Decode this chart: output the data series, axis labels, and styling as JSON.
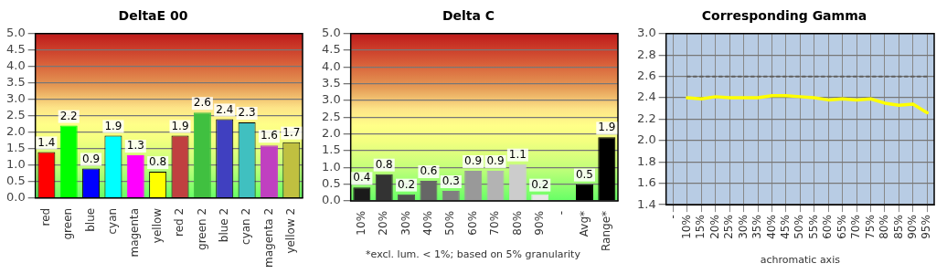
{
  "chart_data": [
    {
      "type": "bar",
      "title": "DeltaE 00",
      "categories": [
        "red",
        "green",
        "blue",
        "cyan",
        "magenta",
        "yellow",
        "red 2",
        "green 2",
        "blue 2",
        "cyan 2",
        "magenta 2",
        "yellow 2"
      ],
      "values": [
        1.4,
        2.2,
        0.9,
        1.9,
        1.3,
        0.8,
        1.9,
        2.6,
        2.4,
        2.3,
        1.6,
        1.7
      ],
      "colors": [
        "#ff0000",
        "#00ff00",
        "#0000ff",
        "#00ffff",
        "#ff00ff",
        "#ffff00",
        "#c04040",
        "#40c040",
        "#4040c0",
        "#40c0c0",
        "#c040c0",
        "#c0c040"
      ],
      "ylim": [
        0,
        5
      ],
      "yticks": [
        {
          "value": 0,
          "label": "0.0"
        },
        0.5,
        {
          "value": 1,
          "label": "1.0"
        },
        1.5,
        {
          "value": 2,
          "label": "2.0"
        },
        2.5,
        {
          "value": 3,
          "label": "3.0"
        },
        3.5,
        {
          "value": 4,
          "label": "4.0"
        },
        4.5,
        {
          "value": 5,
          "label": "5.0"
        }
      ],
      "grid": "y",
      "data_labels": true
    },
    {
      "type": "bar",
      "title": "Delta C",
      "categories": [
        "10%",
        "20%",
        "30%",
        "40%",
        "50%",
        "60%",
        "70%",
        "80%",
        "90%",
        "-",
        "Avg*",
        "Range*"
      ],
      "values": [
        0.4,
        0.8,
        0.2,
        0.6,
        0.3,
        0.9,
        0.9,
        1.1,
        0.2,
        null,
        0.5,
        1.9
      ],
      "colors": [
        "#1a1a1a",
        "#333333",
        "#4d4d4d",
        "#666666",
        "#808080",
        "#999999",
        "#b3b3b3",
        "#cccccc",
        "#e6e6e6",
        "#ffffff",
        "#000000",
        "#000000"
      ],
      "ylim": [
        0,
        5
      ],
      "yticks": [
        {
          "value": 0,
          "label": "0.0"
        },
        0.5,
        {
          "value": 1,
          "label": "1.0"
        },
        1.5,
        {
          "value": 2,
          "label": "2.0"
        },
        2.5,
        {
          "value": 3,
          "label": "3.0"
        },
        3.5,
        {
          "value": 4,
          "label": "4.0"
        },
        4.5,
        {
          "value": 5,
          "label": "5.0"
        }
      ],
      "grid": "y",
      "data_labels": true,
      "annotations": [
        "*excl. lum. < 1%; based on 5% granularity"
      ]
    },
    {
      "type": "line",
      "title": "Corresponding Gamma",
      "xlabel": "achromatic axis",
      "categories": [
        "-",
        "10%",
        "15%",
        "20%",
        "25%",
        "30%",
        "35%",
        "40%",
        "45%",
        "50%",
        "55%",
        "60%",
        "65%",
        "70%",
        "75%",
        "80%",
        "85%",
        "90%",
        "95%"
      ],
      "series": [
        {
          "color": "#ffff00",
          "values": [
            null,
            2.4,
            2.39,
            2.41,
            2.4,
            2.4,
            2.4,
            2.42,
            2.42,
            2.41,
            2.4,
            2.38,
            2.39,
            2.38,
            2.39,
            2.35,
            2.33,
            2.34,
            2.26
          ]
        },
        {
          "color": "#606060",
          "line_style": "dotted",
          "values": [
            null,
            2.6,
            2.6,
            2.6,
            2.6,
            2.6,
            2.6,
            2.6,
            2.6,
            2.6,
            2.6,
            2.6,
            2.6,
            2.6,
            2.6,
            2.6,
            2.6,
            2.6,
            2.6
          ]
        }
      ],
      "ylim": [
        1.4,
        3
      ],
      "yticks": [
        1.4,
        1.6,
        1.8,
        {
          "value": 2,
          "label": "2.0"
        },
        2.2,
        2.4,
        2.6,
        2.8,
        {
          "value": 3,
          "label": "3.0"
        }
      ],
      "grid": true,
      "marker": "none"
    }
  ]
}
